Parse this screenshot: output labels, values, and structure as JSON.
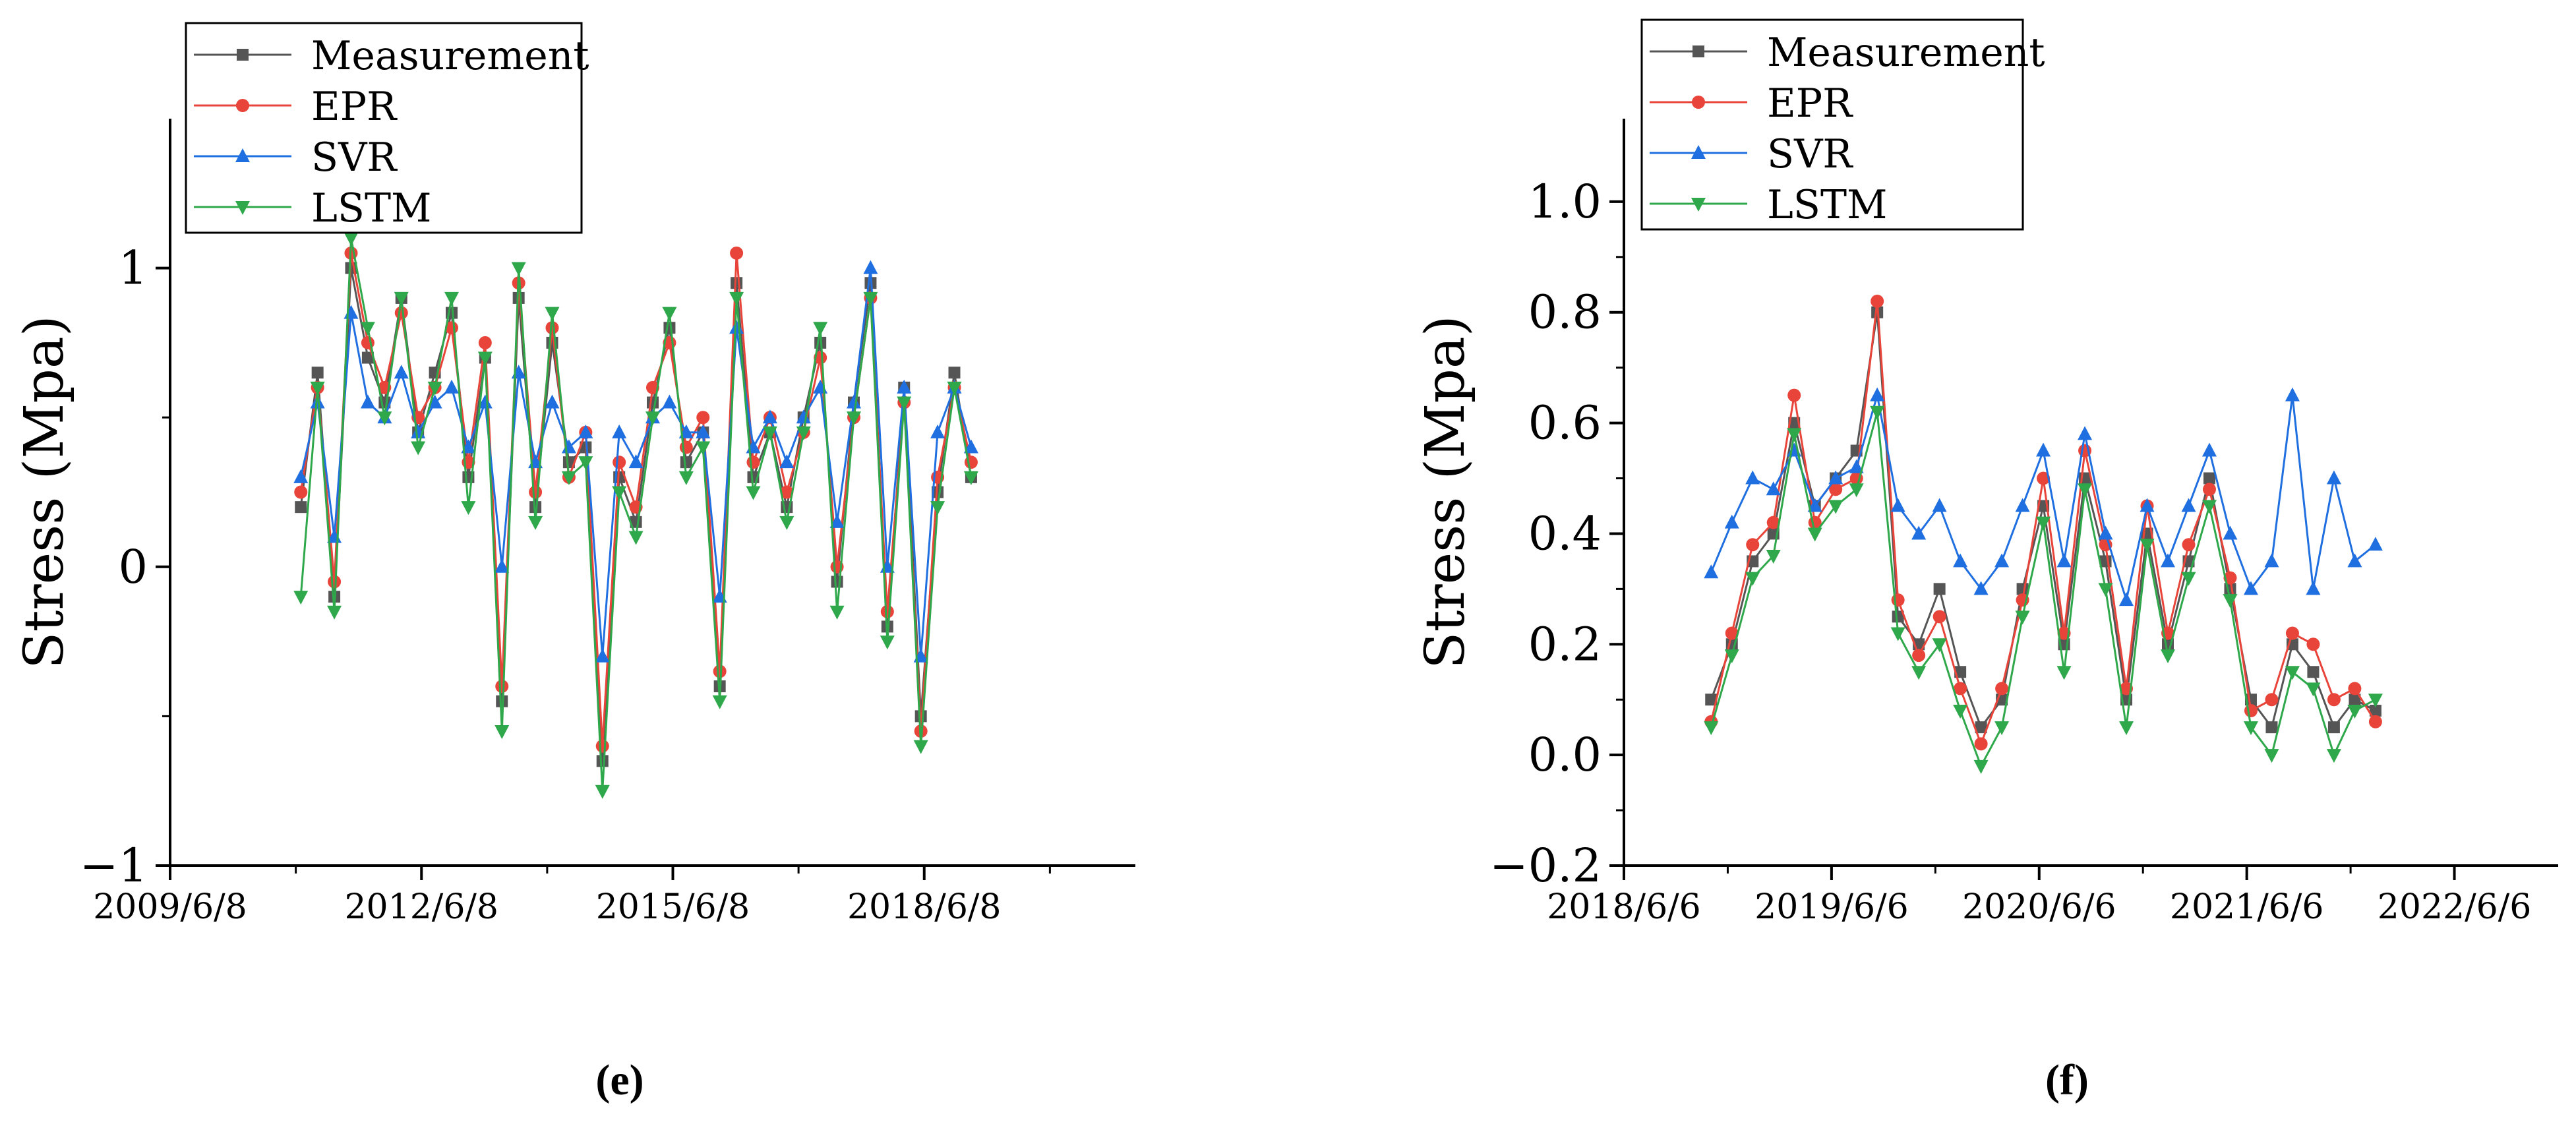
{
  "figure": {
    "panels": [
      {
        "caption": "(e)"
      },
      {
        "caption": "(f)"
      }
    ]
  },
  "chart_data": [
    {
      "type": "line",
      "panel": "(e)",
      "ylabel": "Stress (Mpa)",
      "xlabel": "",
      "xlim": [
        2009.44,
        2020.96
      ],
      "ylim": [
        -1,
        1.5
      ],
      "xticks": [
        2009.44,
        2012.44,
        2015.44,
        2018.44
      ],
      "xtick_labels": [
        "2009/6/8",
        "2012/6/8",
        "2015/6/8",
        "2018/6/8"
      ],
      "yticks": [
        -1,
        0,
        1
      ],
      "ytick_labels": [
        "−1",
        "0",
        "1"
      ],
      "legend": [
        "Measurement",
        "EPR",
        "SVR",
        "LSTM"
      ],
      "legend_position": "top-left",
      "x": [
        2011.0,
        2011.2,
        2011.4,
        2011.6,
        2011.8,
        2012.0,
        2012.2,
        2012.4,
        2012.6,
        2012.8,
        2013.0,
        2013.2,
        2013.4,
        2013.6,
        2013.8,
        2014.0,
        2014.2,
        2014.4,
        2014.6,
        2014.8,
        2015.0,
        2015.2,
        2015.4,
        2015.6,
        2015.8,
        2016.0,
        2016.2,
        2016.4,
        2016.6,
        2016.8,
        2017.0,
        2017.2,
        2017.4,
        2017.6,
        2017.8,
        2018.0,
        2018.2,
        2018.4,
        2018.6,
        2018.8,
        2019.0
      ],
      "series": [
        {
          "name": "Measurement",
          "color": "#555555",
          "marker": "square",
          "values": [
            0.2,
            0.65,
            -0.1,
            1.0,
            0.7,
            0.55,
            0.9,
            0.45,
            0.65,
            0.85,
            0.3,
            0.7,
            -0.45,
            0.9,
            0.2,
            0.75,
            0.35,
            0.4,
            -0.65,
            0.3,
            0.15,
            0.55,
            0.8,
            0.35,
            0.45,
            -0.4,
            0.95,
            0.3,
            0.45,
            0.2,
            0.5,
            0.75,
            -0.05,
            0.55,
            0.95,
            -0.2,
            0.6,
            -0.5,
            0.25,
            0.65,
            0.3
          ]
        },
        {
          "name": "EPR",
          "color": "#e8443a",
          "marker": "circle",
          "values": [
            0.25,
            0.6,
            -0.05,
            1.05,
            0.75,
            0.6,
            0.85,
            0.5,
            0.6,
            0.8,
            0.35,
            0.75,
            -0.4,
            0.95,
            0.25,
            0.8,
            0.3,
            0.45,
            -0.6,
            0.35,
            0.2,
            0.6,
            0.75,
            0.4,
            0.5,
            -0.35,
            1.05,
            0.35,
            0.5,
            0.25,
            0.45,
            0.7,
            0.0,
            0.5,
            0.9,
            -0.15,
            0.55,
            -0.55,
            0.3,
            0.6,
            0.35
          ]
        },
        {
          "name": "SVR",
          "color": "#1f6fe0",
          "marker": "triangle-up",
          "values": [
            0.3,
            0.55,
            0.1,
            0.85,
            0.55,
            0.5,
            0.65,
            0.45,
            0.55,
            0.6,
            0.4,
            0.55,
            0.0,
            0.65,
            0.35,
            0.55,
            0.4,
            0.45,
            -0.3,
            0.45,
            0.35,
            0.5,
            0.55,
            0.45,
            0.45,
            -0.1,
            0.8,
            0.4,
            0.5,
            0.35,
            0.5,
            0.6,
            0.15,
            0.55,
            1.0,
            0.0,
            0.6,
            -0.3,
            0.45,
            0.6,
            0.4
          ]
        },
        {
          "name": "LSTM",
          "color": "#2ea84a",
          "marker": "triangle-down",
          "values": [
            -0.1,
            0.6,
            -0.15,
            1.1,
            0.8,
            0.5,
            0.9,
            0.4,
            0.6,
            0.9,
            0.2,
            0.7,
            -0.55,
            1.0,
            0.15,
            0.85,
            0.3,
            0.35,
            -0.75,
            0.25,
            0.1,
            0.5,
            0.85,
            0.3,
            0.4,
            -0.45,
            0.9,
            0.25,
            0.45,
            0.15,
            0.45,
            0.8,
            -0.15,
            0.5,
            0.9,
            -0.25,
            0.55,
            -0.6,
            0.2,
            0.6,
            0.3
          ]
        }
      ]
    },
    {
      "type": "line",
      "panel": "(f)",
      "ylabel": "Stress (Mpa)",
      "xlabel": "",
      "xlim": [
        2018.43,
        2022.93
      ],
      "ylim": [
        -0.2,
        1.15
      ],
      "xticks": [
        2018.43,
        2019.43,
        2020.43,
        2021.43,
        2022.43
      ],
      "xtick_labels": [
        "2018/6/6",
        "2019/6/6",
        "2020/6/6",
        "2021/6/6",
        "2022/6/6"
      ],
      "yticks": [
        -0.2,
        0.0,
        0.2,
        0.4,
        0.6,
        0.8,
        1.0
      ],
      "ytick_labels": [
        "−0.2",
        "0.0",
        "0.2",
        "0.4",
        "0.6",
        "0.8",
        "1.0"
      ],
      "legend": [
        "Measurement",
        "EPR",
        "SVR",
        "LSTM"
      ],
      "legend_position": "top-left",
      "x": [
        2018.85,
        2018.95,
        2019.05,
        2019.15,
        2019.25,
        2019.35,
        2019.45,
        2019.55,
        2019.65,
        2019.75,
        2019.85,
        2019.95,
        2020.05,
        2020.15,
        2020.25,
        2020.35,
        2020.45,
        2020.55,
        2020.65,
        2020.75,
        2020.85,
        2020.95,
        2021.05,
        2021.15,
        2021.25,
        2021.35,
        2021.45,
        2021.55,
        2021.65,
        2021.75,
        2021.85,
        2021.95,
        2022.05
      ],
      "series": [
        {
          "name": "Measurement",
          "color": "#555555",
          "marker": "square",
          "values": [
            0.1,
            0.2,
            0.35,
            0.4,
            0.6,
            0.45,
            0.5,
            0.55,
            0.8,
            0.25,
            0.2,
            0.3,
            0.15,
            0.05,
            0.1,
            0.3,
            0.45,
            0.2,
            0.5,
            0.35,
            0.1,
            0.4,
            0.2,
            0.35,
            0.5,
            0.3,
            0.1,
            0.05,
            0.2,
            0.15,
            0.05,
            0.1,
            0.08
          ]
        },
        {
          "name": "EPR",
          "color": "#e8443a",
          "marker": "circle",
          "values": [
            0.06,
            0.22,
            0.38,
            0.42,
            0.65,
            0.42,
            0.48,
            0.5,
            0.82,
            0.28,
            0.18,
            0.25,
            0.12,
            0.02,
            0.12,
            0.28,
            0.5,
            0.22,
            0.55,
            0.38,
            0.12,
            0.45,
            0.22,
            0.38,
            0.48,
            0.32,
            0.08,
            0.1,
            0.22,
            0.2,
            0.1,
            0.12,
            0.06
          ]
        },
        {
          "name": "SVR",
          "color": "#1f6fe0",
          "marker": "triangle-up",
          "values": [
            0.33,
            0.42,
            0.5,
            0.48,
            0.55,
            0.45,
            0.5,
            0.52,
            0.65,
            0.45,
            0.4,
            0.45,
            0.35,
            0.3,
            0.35,
            0.45,
            0.55,
            0.35,
            0.58,
            0.4,
            0.28,
            0.45,
            0.35,
            0.45,
            0.55,
            0.4,
            0.3,
            0.35,
            0.65,
            0.3,
            0.5,
            0.35,
            0.38
          ]
        },
        {
          "name": "LSTM",
          "color": "#2ea84a",
          "marker": "triangle-down",
          "values": [
            0.05,
            0.18,
            0.32,
            0.36,
            0.58,
            0.4,
            0.45,
            0.48,
            0.62,
            0.22,
            0.15,
            0.2,
            0.08,
            -0.02,
            0.05,
            0.25,
            0.42,
            0.15,
            0.48,
            0.3,
            0.05,
            0.38,
            0.18,
            0.32,
            0.45,
            0.28,
            0.05,
            0.0,
            0.15,
            0.12,
            0.0,
            0.08,
            0.1
          ]
        }
      ]
    }
  ]
}
